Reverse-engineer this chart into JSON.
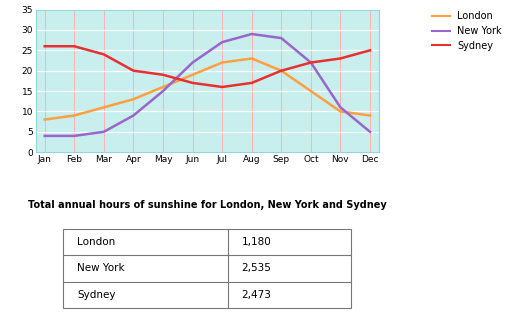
{
  "months": [
    "Jan",
    "Feb",
    "Mar",
    "Apr",
    "May",
    "Jun",
    "Jul",
    "Aug",
    "Sep",
    "Oct",
    "Nov",
    "Dec"
  ],
  "london": [
    8,
    9,
    11,
    13,
    16,
    19,
    22,
    23,
    20,
    15,
    10,
    9
  ],
  "new_york": [
    4,
    4,
    5,
    9,
    15,
    22,
    27,
    29,
    28,
    22,
    11,
    5
  ],
  "sydney": [
    26,
    26,
    24,
    20,
    19,
    17,
    16,
    17,
    20,
    22,
    23,
    25
  ],
  "london_color": "#FFA040",
  "new_york_color": "#9966CC",
  "sydney_color": "#E83030",
  "plot_bg_color": "#C8EEEE",
  "grid_h_color": "#ffffff",
  "grid_v_color": "#FFB0B0",
  "ylim": [
    0,
    35
  ],
  "yticks": [
    0,
    5,
    10,
    15,
    20,
    25,
    30,
    35
  ],
  "table_title": "Total annual hours of sunshine for London, New York and Sydney",
  "table_cities": [
    "London",
    "New York",
    "Sydney"
  ],
  "table_values": [
    "1,180",
    "2,535",
    "2,473"
  ],
  "line_width": 1.8
}
